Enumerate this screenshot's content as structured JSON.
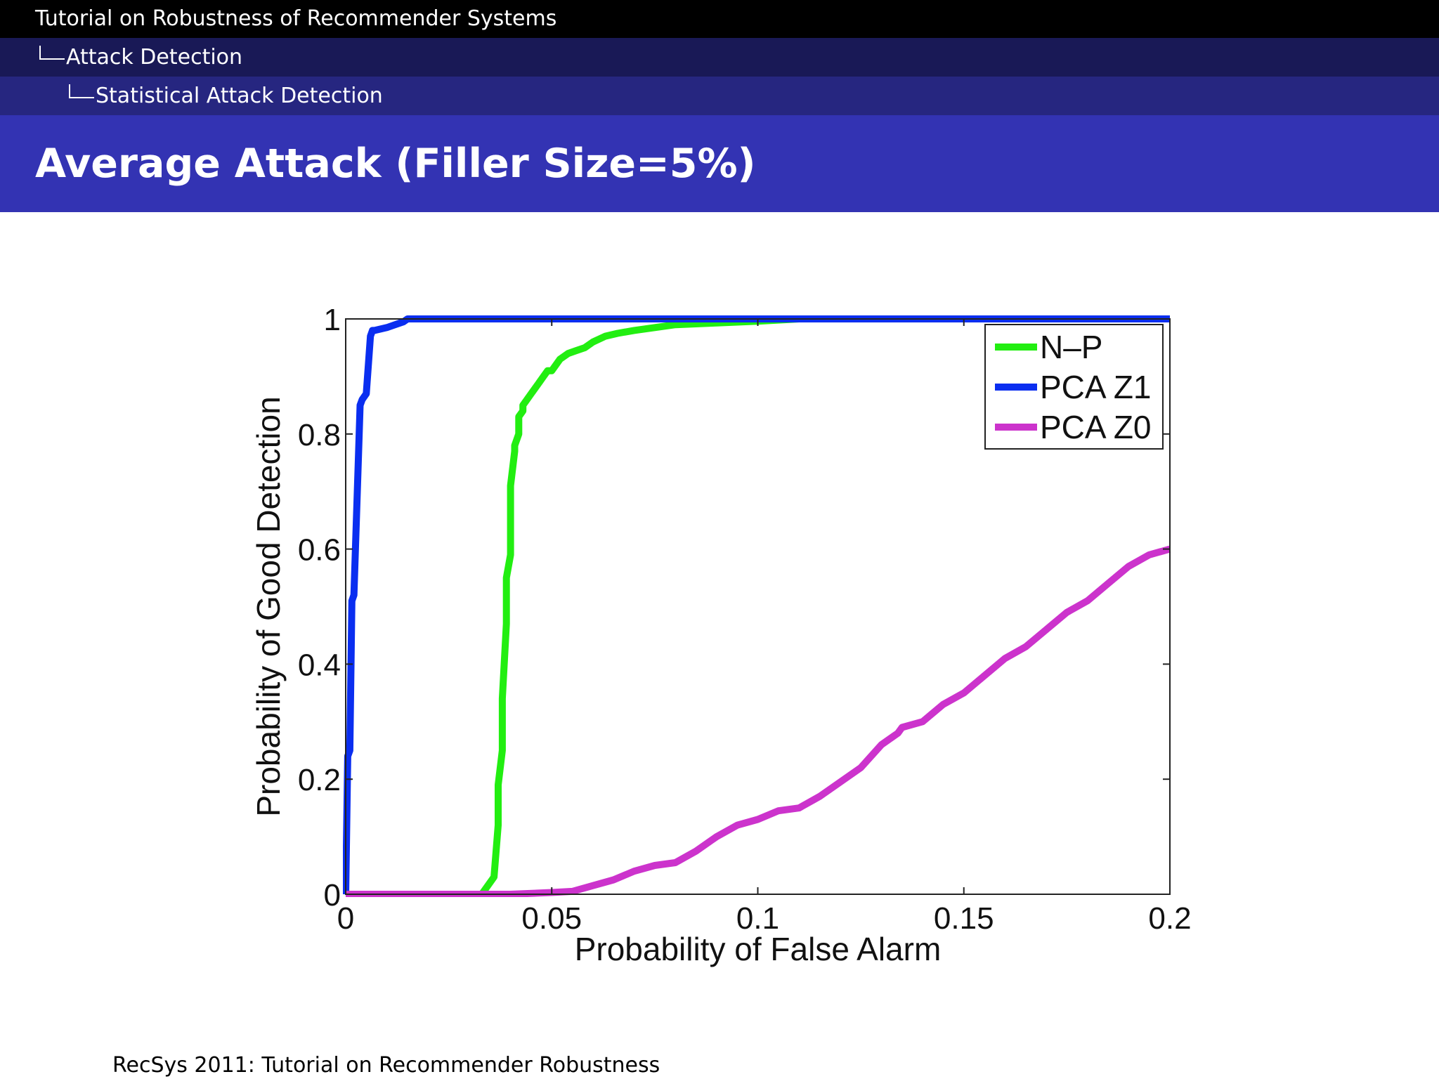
{
  "header": {
    "section": "Tutorial on Robustness of Recommender Systems",
    "subsection": "Attack Detection",
    "subsubsection": "Statistical Attack Detection"
  },
  "frame_title": "Average Attack (Filler Size=5%)",
  "footer": "RecSys 2011: Tutorial on Recommender Robustness",
  "colors": {
    "nav_black": "#000000",
    "nav_dark": "#191956",
    "nav_mid": "#262680",
    "title_band": "#3333b3"
  },
  "chart_data": {
    "type": "line",
    "title": "",
    "xlabel": "Probability of False Alarm",
    "ylabel": "Probability of Good Detection",
    "xlim": [
      0,
      0.2
    ],
    "ylim": [
      0,
      1
    ],
    "xticks": [
      0,
      0.05,
      0.1,
      0.15,
      0.2
    ],
    "xtick_labels": [
      "0",
      "0.05",
      "0.1",
      "0.15",
      "0.2"
    ],
    "yticks": [
      0,
      0.2,
      0.4,
      0.6,
      0.8,
      1
    ],
    "ytick_labels": [
      "0",
      "0.2",
      "0.4",
      "0.6",
      "0.8",
      "1"
    ],
    "grid": false,
    "legend_position": "top-right",
    "series": [
      {
        "name": "N–P",
        "color": "#22ee11",
        "x": [
          0,
          0.033,
          0.034,
          0.036,
          0.037,
          0.037,
          0.038,
          0.038,
          0.039,
          0.039,
          0.04,
          0.04,
          0.041,
          0.041,
          0.042,
          0.042,
          0.043,
          0.043,
          0.044,
          0.045,
          0.046,
          0.047,
          0.048,
          0.049,
          0.05,
          0.052,
          0.054,
          0.056,
          0.058,
          0.06,
          0.063,
          0.066,
          0.07,
          0.075,
          0.08,
          0.09,
          0.1,
          0.11,
          0.13,
          0.15,
          0.2
        ],
        "y": [
          0,
          0,
          0.01,
          0.03,
          0.12,
          0.19,
          0.25,
          0.34,
          0.47,
          0.55,
          0.59,
          0.71,
          0.77,
          0.78,
          0.8,
          0.83,
          0.84,
          0.85,
          0.86,
          0.87,
          0.88,
          0.89,
          0.9,
          0.91,
          0.91,
          0.93,
          0.94,
          0.945,
          0.95,
          0.96,
          0.97,
          0.975,
          0.98,
          0.985,
          0.99,
          0.993,
          0.996,
          1.0,
          1.0,
          1.0,
          1.0
        ]
      },
      {
        "name": "PCA Z1",
        "color": "#0a2ef0",
        "x": [
          0,
          0.0005,
          0.001,
          0.0015,
          0.002,
          0.003,
          0.0035,
          0.004,
          0.005,
          0.006,
          0.0065,
          0.007,
          0.01,
          0.012,
          0.014,
          0.015,
          0.02,
          0.1,
          0.2
        ],
        "y": [
          0,
          0.24,
          0.25,
          0.51,
          0.52,
          0.74,
          0.85,
          0.86,
          0.87,
          0.97,
          0.98,
          0.98,
          0.985,
          0.99,
          0.995,
          1.0,
          1.0,
          1.0,
          1.0
        ]
      },
      {
        "name": "PCA Z0",
        "color": "#cc33cc",
        "x": [
          0,
          0.04,
          0.05,
          0.055,
          0.06,
          0.065,
          0.07,
          0.075,
          0.08,
          0.085,
          0.09,
          0.095,
          0.1,
          0.105,
          0.11,
          0.115,
          0.12,
          0.125,
          0.13,
          0.134,
          0.135,
          0.14,
          0.145,
          0.15,
          0.155,
          0.16,
          0.165,
          0.17,
          0.175,
          0.18,
          0.185,
          0.19,
          0.195,
          0.2
        ],
        "y": [
          0,
          0,
          0.003,
          0.005,
          0.015,
          0.025,
          0.04,
          0.05,
          0.055,
          0.075,
          0.1,
          0.12,
          0.13,
          0.145,
          0.15,
          0.17,
          0.195,
          0.22,
          0.26,
          0.28,
          0.29,
          0.3,
          0.33,
          0.35,
          0.38,
          0.41,
          0.43,
          0.46,
          0.49,
          0.51,
          0.54,
          0.57,
          0.59,
          0.6
        ]
      }
    ]
  }
}
